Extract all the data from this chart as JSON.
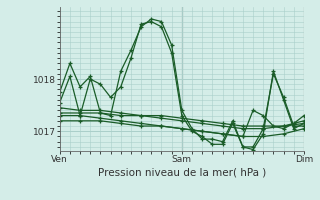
{
  "background_color": "#d4ede8",
  "plot_bg_color": "#d4ede8",
  "grid_color": "#aacfca",
  "line_color": "#1a5c28",
  "xlabel": "Pression niveau de la mer( hPa )",
  "ylim": [
    1016.62,
    1019.38
  ],
  "yticks": [
    1017.0,
    1018.0
  ],
  "xtick_labels": [
    "Ven",
    "Sam",
    "Dim"
  ],
  "xtick_positions": [
    0,
    48,
    96
  ],
  "series": [
    {
      "x": [
        0,
        4,
        8,
        12,
        16,
        20,
        24,
        28,
        32,
        36,
        40,
        44,
        48,
        52,
        56,
        60,
        64,
        68,
        72,
        76,
        80,
        84,
        88,
        92,
        96
      ],
      "y": [
        1017.75,
        1018.3,
        1017.85,
        1018.05,
        1017.35,
        1017.3,
        1018.15,
        1018.55,
        1019.0,
        1019.15,
        1019.1,
        1018.65,
        1017.4,
        1017.05,
        1016.85,
        1016.85,
        1016.8,
        1017.2,
        1016.7,
        1016.7,
        1017.05,
        1018.1,
        1017.65,
        1017.1,
        1017.1
      ]
    },
    {
      "x": [
        0,
        4,
        8,
        12,
        16,
        20,
        24,
        28,
        32,
        36,
        40,
        44,
        48,
        52,
        56,
        60,
        64,
        68,
        72,
        76,
        80,
        84,
        88,
        92,
        96
      ],
      "y": [
        1017.55,
        1018.05,
        1017.3,
        1018.0,
        1017.9,
        1017.65,
        1017.85,
        1018.4,
        1019.05,
        1019.1,
        1019.0,
        1018.5,
        1017.3,
        1017.0,
        1016.9,
        1016.75,
        1016.75,
        1017.15,
        1016.7,
        1016.65,
        1016.95,
        1018.15,
        1017.6,
        1017.05,
        1017.15
      ]
    },
    {
      "x": [
        0,
        8,
        16,
        24,
        32,
        40,
        48,
        56,
        64,
        72,
        80,
        88,
        96
      ],
      "y": [
        1017.35,
        1017.35,
        1017.35,
        1017.3,
        1017.3,
        1017.3,
        1017.25,
        1017.2,
        1017.15,
        1017.1,
        1017.1,
        1017.1,
        1017.15
      ]
    },
    {
      "x": [
        0,
        8,
        16,
        24,
        32,
        40,
        48,
        56,
        64,
        72,
        80,
        88,
        96
      ],
      "y": [
        1017.2,
        1017.2,
        1017.2,
        1017.15,
        1017.1,
        1017.1,
        1017.05,
        1017.0,
        1016.95,
        1016.9,
        1016.9,
        1016.95,
        1017.05
      ]
    },
    {
      "x": [
        0,
        8,
        16,
        24,
        32,
        40,
        48,
        56,
        64,
        72,
        80,
        88,
        96
      ],
      "y": [
        1017.45,
        1017.4,
        1017.4,
        1017.35,
        1017.3,
        1017.25,
        1017.2,
        1017.15,
        1017.1,
        1017.05,
        1017.05,
        1017.1,
        1017.2
      ]
    },
    {
      "x": [
        0,
        8,
        16,
        24,
        32,
        40,
        48,
        56,
        64,
        72,
        76,
        80,
        84,
        88,
        92,
        96
      ],
      "y": [
        1017.3,
        1017.3,
        1017.25,
        1017.2,
        1017.15,
        1017.1,
        1017.05,
        1017.0,
        1016.95,
        1016.9,
        1017.4,
        1017.3,
        1017.1,
        1017.05,
        1017.15,
        1017.3
      ]
    }
  ],
  "linewidth": 0.9,
  "markersize": 3.0
}
